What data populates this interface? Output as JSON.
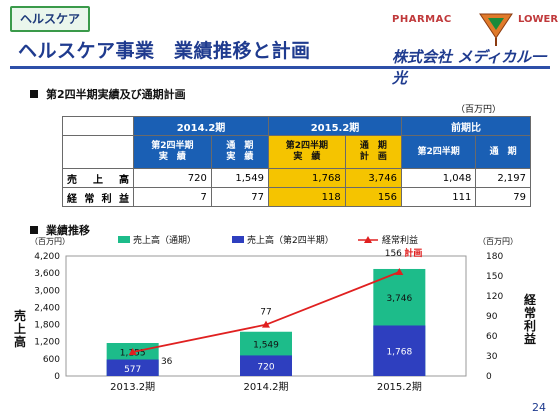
{
  "header": {
    "category_tag": "ヘルスケア",
    "title": "ヘルスケア事業　業績推移と計画",
    "logo_left": "PHARMAC",
    "logo_right": "LOWER",
    "company": "株式会社 メディカル一光"
  },
  "section1": {
    "title": "第2四半期実績及び通期計画",
    "unit": "（百万円）"
  },
  "table": {
    "group_headers": [
      "2014.2期",
      "2015.2期",
      "前期比"
    ],
    "sub_headers": [
      "第2四半期\n実　績",
      "通　期\n実　績",
      "第2四半期\n実　績",
      "通　期\n計　画",
      "第2四半期",
      "通　期"
    ],
    "rows": [
      {
        "label": "売　上　高",
        "values": [
          "720",
          "1,549",
          "1,768",
          "3,746",
          "1,048",
          "2,197"
        ]
      },
      {
        "label": "経 常 利 益",
        "values": [
          "7",
          "77",
          "118",
          "156",
          "111",
          "79"
        ]
      }
    ]
  },
  "section2": {
    "title": "業績推移",
    "unit_left": "（百万円）",
    "unit_right": "（百万円）",
    "left_axis_label": "売上高",
    "right_axis_label": "経常利益"
  },
  "chart_data": {
    "type": "bar",
    "categories": [
      "2013.2期",
      "2014.2期",
      "2015.2期"
    ],
    "series": [
      {
        "name": "売上高（通期）",
        "values": [
          1155,
          1549,
          3746
        ],
        "color": "#1dbc8a"
      },
      {
        "name": "売上高（第2四半期）",
        "values": [
          577,
          720,
          1768
        ],
        "color": "#2e3fbf"
      },
      {
        "name": "経常利益",
        "values": [
          36,
          77,
          156
        ],
        "color": "#e02020",
        "axis": "right"
      }
    ],
    "data_labels": {
      "full_year": [
        "1,155",
        "1,549",
        "3,746"
      ],
      "q2": [
        "577",
        "720",
        "1,768"
      ],
      "profit": [
        "36",
        "77",
        "156"
      ]
    },
    "annotation": "計画",
    "y_left": {
      "min": 0,
      "max": 4200,
      "ticks": [
        "0",
        "600",
        "1,200",
        "1,800",
        "2,400",
        "3,000",
        "3,600",
        "4,200"
      ]
    },
    "y_right": {
      "min": 0,
      "max": 180,
      "ticks": [
        "0",
        "30",
        "60",
        "90",
        "120",
        "150",
        "180"
      ]
    },
    "legend_position": "top",
    "grid": false
  },
  "footer": {
    "page_number": "24"
  },
  "colors": {
    "accent": "#1f3b8f",
    "header_blue": "#1a5fb4",
    "highlight": "#f5c400"
  }
}
